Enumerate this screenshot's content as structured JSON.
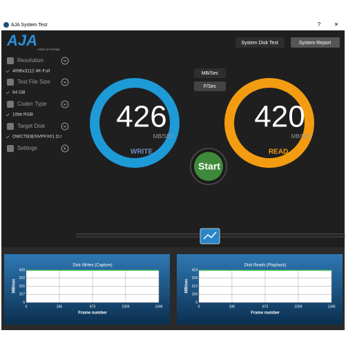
{
  "window": {
    "title": "AJA System Test",
    "help": "?",
    "close": "×"
  },
  "logo": {
    "name": "AJA",
    "tagline": "VIDEO SYSTEMS"
  },
  "sidebar": [
    {
      "label": "Resolution",
      "value": "4096x3112 4K-Full"
    },
    {
      "label": "Test File Size",
      "value": "64 GB"
    },
    {
      "label": "Codec Type",
      "value": "10bit RGB"
    },
    {
      "label": "Target Disk",
      "value": "OWCTB3ENVPFX01 D:/"
    },
    {
      "label": "Settings"
    }
  ],
  "buttons": {
    "disk_test": "System Disk Test",
    "report": "System Report",
    "mbsec": "MB/Sec",
    "fsec": "F/Sec",
    "start": "Start"
  },
  "gauges": [
    {
      "value": "426",
      "unit": "MB/SEC",
      "label": "WRITE"
    },
    {
      "value": "420",
      "unit": "MB/SEC",
      "label": "READ"
    }
  ],
  "charts": [
    {
      "title": "Disk Writes (Capture)",
      "y_label": "MB/sec",
      "x_label": "Frame number",
      "xlim": [
        0,
        1346
      ],
      "xticks": [
        0,
        336,
        673,
        1009,
        1346
      ],
      "ylim": [
        0,
        430
      ],
      "yticks": [
        0,
        107,
        215,
        322,
        430
      ],
      "x": [
        0,
        1346
      ],
      "values": [
        426,
        426
      ],
      "color": "#2ecc40"
    },
    {
      "title": "Disk Reads (Playback)",
      "y_label": "MB/sec",
      "x_label": "Frame number",
      "xlim": [
        0,
        1346
      ],
      "xticks": [
        0,
        336,
        673,
        1009,
        1346
      ],
      "ylim": [
        0,
        424
      ],
      "yticks": [
        0,
        106,
        212,
        318,
        424
      ],
      "x": [
        0,
        1346
      ],
      "values": [
        420,
        420
      ],
      "color": "#2ecc40"
    }
  ]
}
